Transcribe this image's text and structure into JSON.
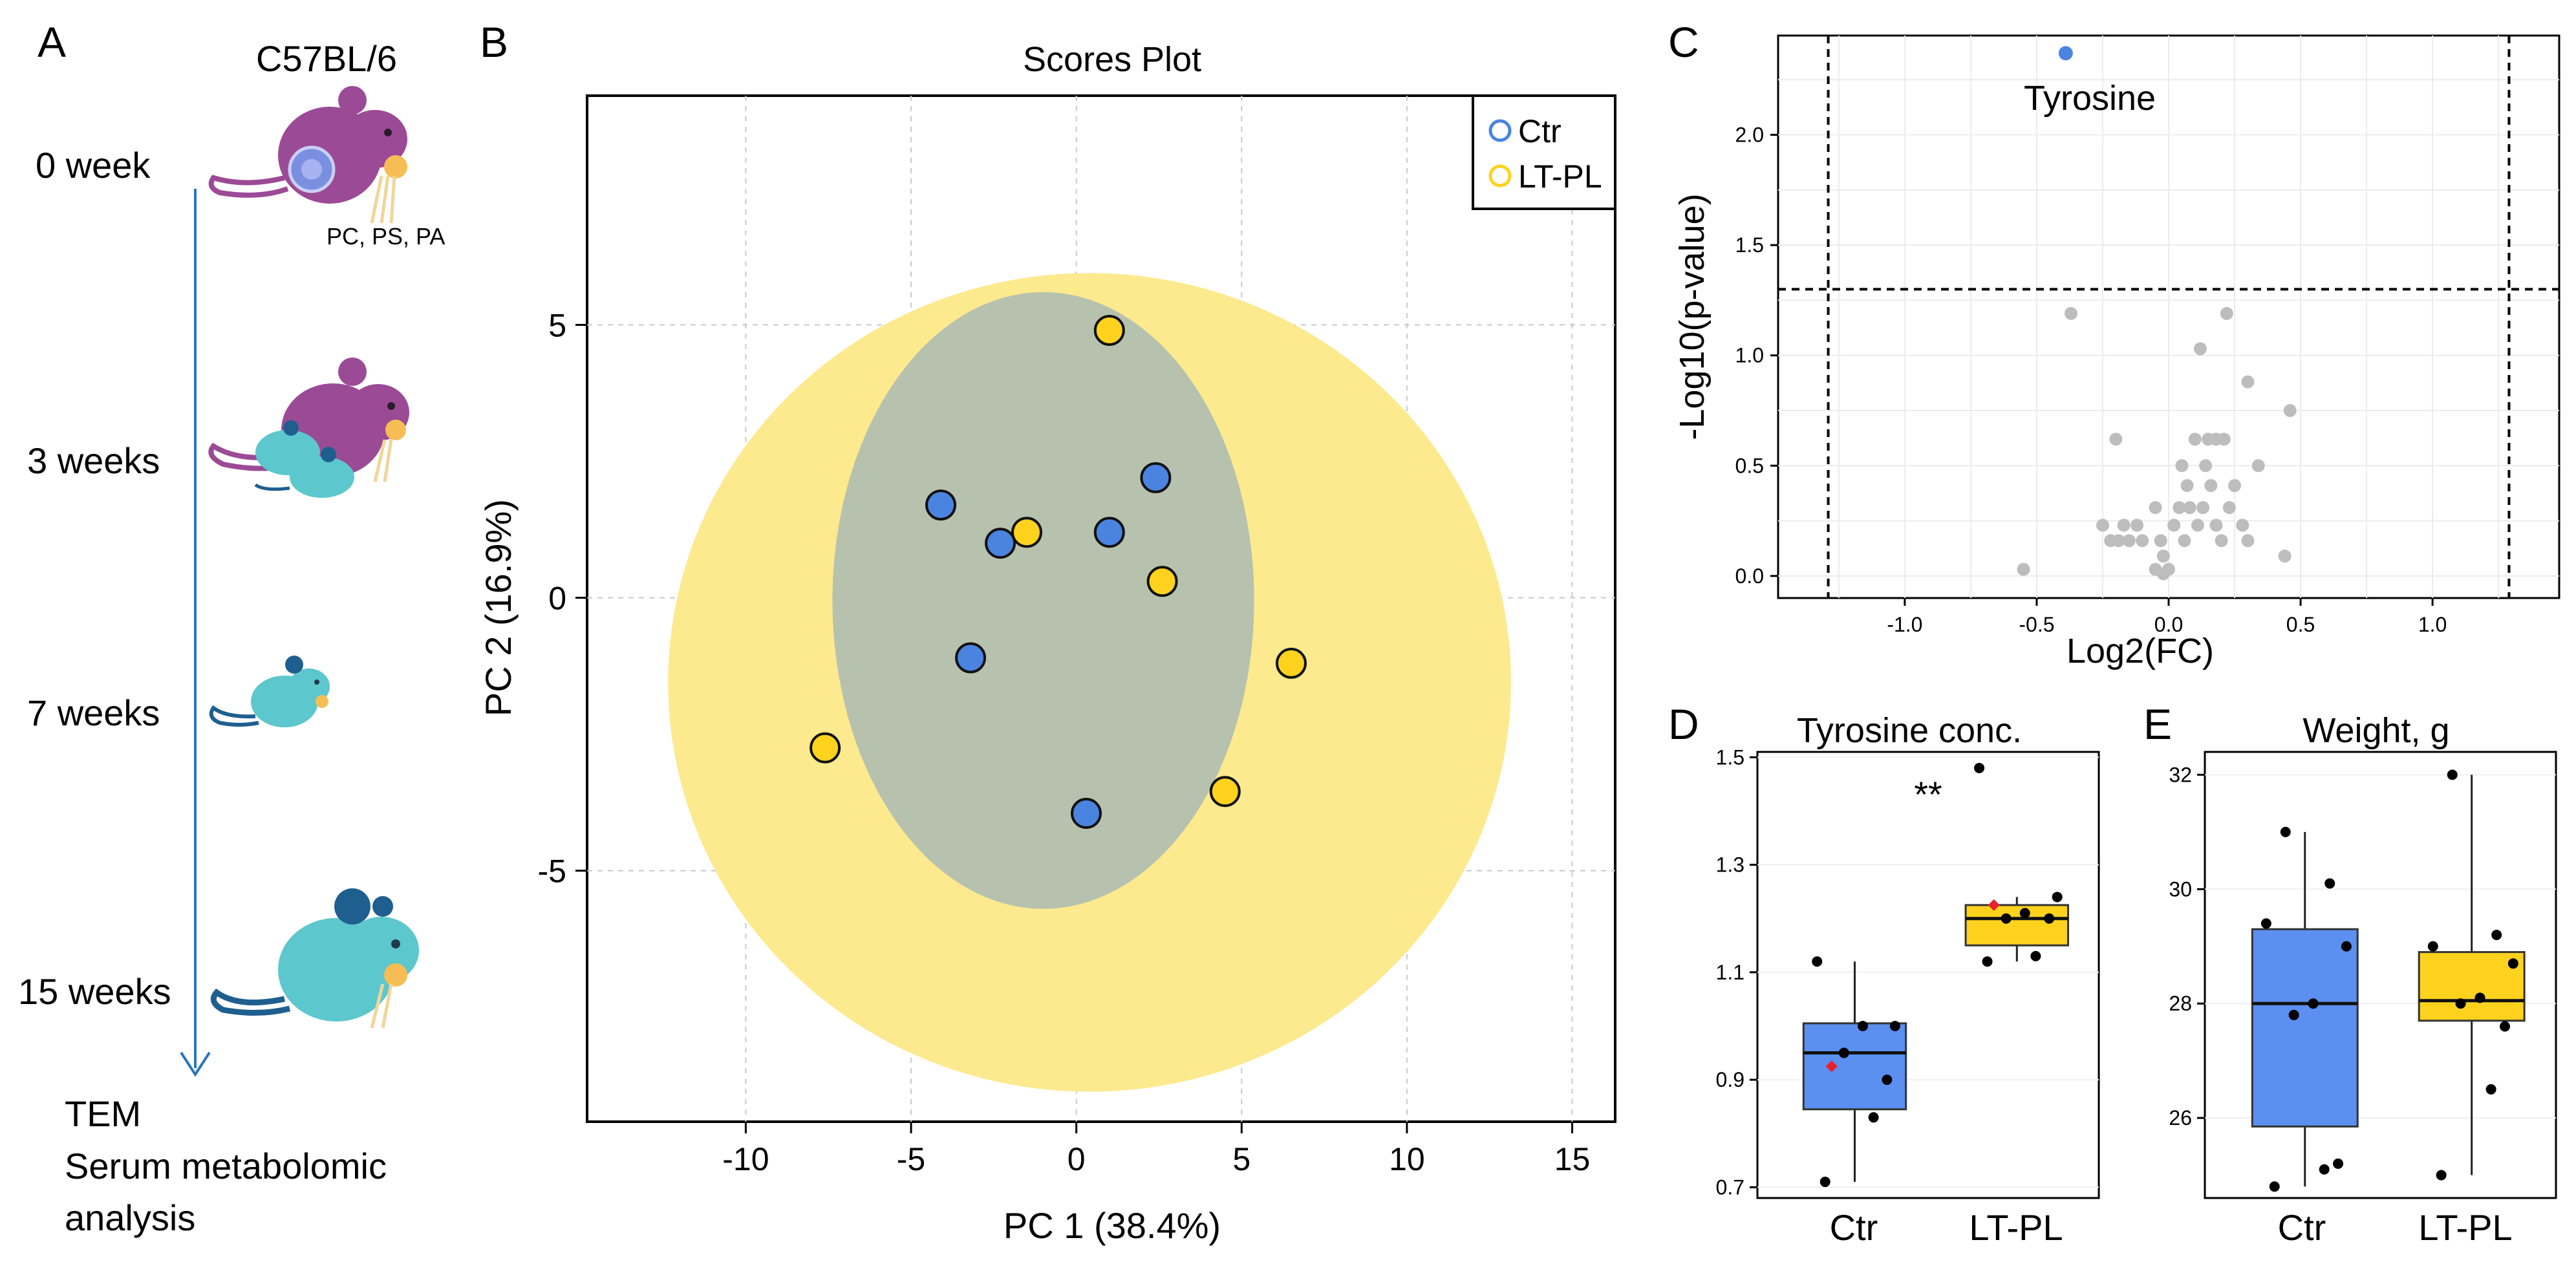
{
  "colors": {
    "ctr": "#4a84e0",
    "ltpl": "#ffd21e",
    "ctr_box": "#5b8ff0",
    "ltpl_box": "#ffd21e",
    "outer_ellipse": "#fde98e",
    "inner_ellipse": "#b7c2ae",
    "mouse_adult": "#9b4b95",
    "mouse_pup": "#5cc7cc",
    "arrow": "#2a74c2",
    "grey_point": "#bdbdbd",
    "mean_marker": "#e8212c"
  },
  "panel_a": {
    "label": "A",
    "strain": "C57BL/6",
    "timepoints": [
      "0 week",
      "3 weeks",
      "7 weeks",
      "15 weeks"
    ],
    "diet_note": "PC, PS, PA",
    "outcome_lines": [
      "TEM",
      "Serum metabolomic",
      "analysis"
    ]
  },
  "chart_data": [
    {
      "id": "B",
      "type": "scatter",
      "title": "Scores Plot",
      "xlabel": "PC 1 (38.4%)",
      "ylabel": "PC 2 (16.9%)",
      "xlim": [
        -14.8,
        16.3
      ],
      "ylim": [
        -9.6,
        9.2
      ],
      "xticks": [
        -10,
        -5,
        0,
        5,
        10,
        15
      ],
      "yticks": [
        -5,
        0,
        5
      ],
      "grid": true,
      "legend_position": "top-right",
      "ellipses": [
        {
          "group": "LT-PL",
          "cx": 0.4,
          "cy": -1.55,
          "rx": 12.75,
          "ry": 7.5
        },
        {
          "group": "Ctr",
          "cx": -1.0,
          "cy": -0.05,
          "rx": 6.38,
          "ry": 5.65
        }
      ],
      "series": [
        {
          "name": "Ctr",
          "points": [
            [
              -4.1,
              1.7
            ],
            [
              -2.3,
              1.0
            ],
            [
              1.0,
              1.2
            ],
            [
              2.4,
              2.2
            ],
            [
              -3.2,
              -1.1
            ],
            [
              0.3,
              -3.95
            ]
          ]
        },
        {
          "name": "LT-PL",
          "points": [
            [
              1.0,
              4.9
            ],
            [
              -1.5,
              1.2
            ],
            [
              2.6,
              0.3
            ],
            [
              6.5,
              -1.2
            ],
            [
              -7.6,
              -2.75
            ],
            [
              4.5,
              -3.55
            ]
          ]
        }
      ]
    },
    {
      "id": "C",
      "type": "scatter",
      "xlabel": "Log2(FC)",
      "ylabel": "-Log10(p-value)",
      "xlim": [
        -1.48,
        1.48
      ],
      "ylim": [
        -0.1,
        2.45
      ],
      "xticks": [
        -1.0,
        -0.5,
        0.0,
        0.5,
        1.0
      ],
      "yticks": [
        0.0,
        0.5,
        1.0,
        1.5,
        2.0
      ],
      "thresholds": {
        "fc": [
          -1.29,
          1.29
        ],
        "p": 1.3
      },
      "annotation": "Tyrosine",
      "highlight": {
        "name": "Tyrosine",
        "x": -0.39,
        "y": 2.37
      },
      "points": [
        [
          -0.55,
          0.03
        ],
        [
          -0.37,
          1.19
        ],
        [
          -0.25,
          0.23
        ],
        [
          -0.22,
          0.16
        ],
        [
          -0.2,
          0.62
        ],
        [
          -0.19,
          0.16
        ],
        [
          -0.17,
          0.23
        ],
        [
          -0.15,
          0.16
        ],
        [
          -0.12,
          0.23
        ],
        [
          -0.1,
          0.16
        ],
        [
          -0.05,
          0.31
        ],
        [
          -0.05,
          0.03
        ],
        [
          -0.03,
          0.16
        ],
        [
          -0.02,
          0.01
        ],
        [
          0.0,
          0.03
        ],
        [
          -0.02,
          0.09
        ],
        [
          0.02,
          0.23
        ],
        [
          0.04,
          0.31
        ],
        [
          0.06,
          0.16
        ],
        [
          0.08,
          0.31
        ],
        [
          0.07,
          0.41
        ],
        [
          0.05,
          0.5
        ],
        [
          0.1,
          0.62
        ],
        [
          0.11,
          0.23
        ],
        [
          0.12,
          1.03
        ],
        [
          0.13,
          0.31
        ],
        [
          0.14,
          0.5
        ],
        [
          0.15,
          0.62
        ],
        [
          0.16,
          0.41
        ],
        [
          0.18,
          0.23
        ],
        [
          0.18,
          0.62
        ],
        [
          0.2,
          0.16
        ],
        [
          0.21,
          0.62
        ],
        [
          0.22,
          1.19
        ],
        [
          0.23,
          0.31
        ],
        [
          0.25,
          0.41
        ],
        [
          0.28,
          0.23
        ],
        [
          0.3,
          0.16
        ],
        [
          0.3,
          0.88
        ],
        [
          0.34,
          0.5
        ],
        [
          0.44,
          0.09
        ],
        [
          0.46,
          0.75
        ]
      ]
    },
    {
      "id": "D",
      "type": "box",
      "title": "Tyrosine conc.",
      "categories": [
        "Ctr",
        "LT-PL"
      ],
      "ylim": [
        0.68,
        1.51
      ],
      "yticks": [
        0.7,
        0.9,
        1.1,
        1.3,
        1.5
      ],
      "significance": "**",
      "boxes": [
        {
          "group": "Ctr",
          "q1": 0.845,
          "median": 0.95,
          "q3": 1.005,
          "whisker_low": 0.71,
          "whisker_high": 1.12,
          "mean": 0.925,
          "points": [
            0.71,
            0.83,
            0.9,
            0.95,
            1.0,
            1.0,
            1.12
          ]
        },
        {
          "group": "LT-PL",
          "q1": 1.15,
          "median": 1.2,
          "q3": 1.225,
          "whisker_low": 1.12,
          "whisker_high": 1.24,
          "mean": 1.225,
          "points": [
            1.12,
            1.13,
            1.2,
            1.2,
            1.21,
            1.24,
            1.48
          ]
        }
      ]
    },
    {
      "id": "E",
      "type": "box",
      "title": "Weight, g",
      "categories": [
        "Ctr",
        "LT-PL"
      ],
      "ylim": [
        24.6,
        32.4
      ],
      "yticks": [
        26,
        28,
        30,
        32
      ],
      "boxes": [
        {
          "group": "Ctr",
          "q1": 25.85,
          "median": 28.0,
          "q3": 29.3,
          "whisker_low": 24.8,
          "whisker_high": 31.0,
          "points": [
            24.8,
            25.1,
            25.2,
            27.8,
            28.0,
            29.0,
            29.4,
            30.1,
            31.0
          ]
        },
        {
          "group": "LT-PL",
          "q1": 27.7,
          "median": 28.05,
          "q3": 28.9,
          "whisker_low": 25.0,
          "whisker_high": 32.0,
          "points": [
            25.0,
            26.5,
            27.6,
            28.0,
            28.1,
            28.7,
            29.0,
            29.2,
            32.0
          ]
        }
      ]
    }
  ],
  "panel_labels": {
    "b": "B",
    "c": "C",
    "d": "D",
    "e": "E"
  }
}
